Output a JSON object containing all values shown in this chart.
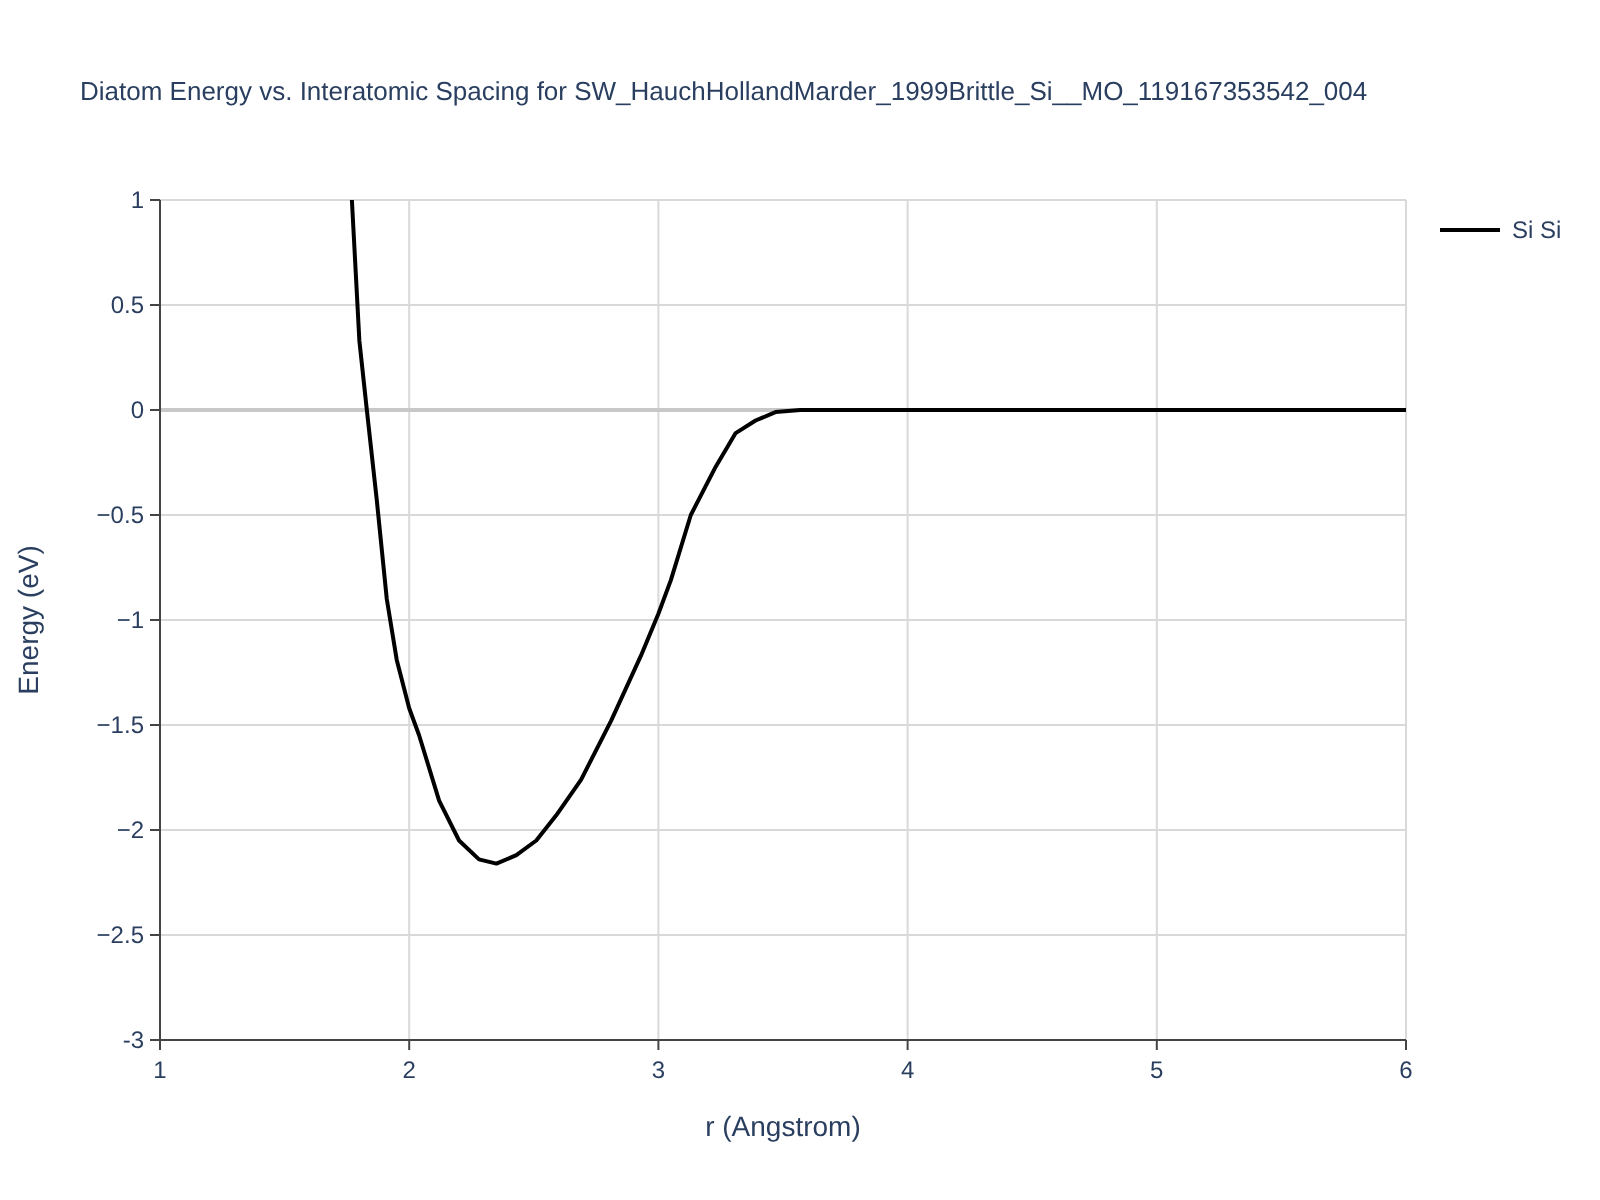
{
  "chart_data": {
    "type": "line",
    "title": "Diatom Energy vs. Interatomic Spacing for SW_HauchHollandMarder_1999Brittle_Si__MO_119167353542_004",
    "xlabel": "r (Angstrom)",
    "ylabel": "Energy (eV)",
    "series": [
      {
        "name": "Si Si",
        "color": "#000000",
        "x": [
          1.77,
          1.8,
          1.83,
          1.87,
          1.91,
          1.95,
          2.0,
          2.04,
          2.12,
          2.2,
          2.28,
          2.35,
          2.43,
          2.51,
          2.59,
          2.69,
          2.81,
          2.93,
          3.0,
          3.05,
          3.13,
          3.23,
          3.31,
          3.39,
          3.47,
          3.57,
          4,
          5,
          6
        ],
        "values": [
          1.0,
          0.33,
          0,
          -0.43,
          -0.9,
          -1.19,
          -1.42,
          -1.55,
          -1.86,
          -2.05,
          -2.14,
          -2.16,
          -2.12,
          -2.05,
          -1.93,
          -1.76,
          -1.48,
          -1.17,
          -0.97,
          -0.81,
          -0.5,
          -0.27,
          -0.11,
          -0.05,
          -0.01,
          0,
          0,
          0,
          0
        ]
      }
    ],
    "xlim": [
      1,
      6
    ],
    "xticks": [
      1,
      2,
      3,
      4,
      5,
      6
    ],
    "ylim": [
      -3,
      1
    ],
    "yticks": [
      -3,
      {
        "value": -2.5,
        "label": "−2.5"
      },
      {
        "value": -2,
        "label": "−2"
      },
      {
        "value": -1.5,
        "label": "−1.5"
      },
      {
        "value": -1,
        "label": "−1"
      },
      {
        "value": -0.5,
        "label": "−0.5"
      },
      0,
      0.5,
      1
    ],
    "grid": true,
    "legend": "top right",
    "line_style": "solid",
    "marker": "none"
  }
}
